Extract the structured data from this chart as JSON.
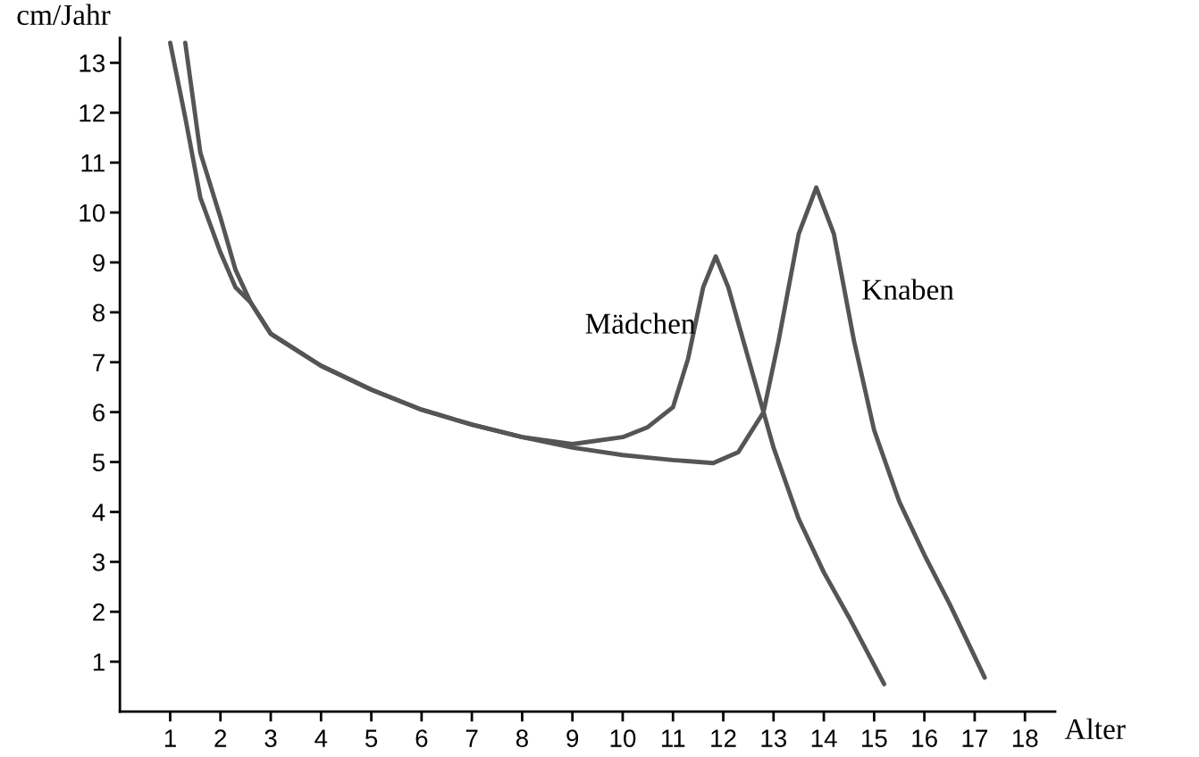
{
  "chart_data": {
    "type": "line",
    "xlabel": "Alter",
    "ylabel": "cm/Jahr",
    "xlim": [
      0,
      18.6
    ],
    "ylim": [
      0,
      13.5
    ],
    "xticks": [
      1,
      2,
      3,
      4,
      5,
      6,
      7,
      8,
      9,
      10,
      11,
      12,
      13,
      14,
      15,
      16,
      17,
      18
    ],
    "yticks": [
      1,
      2,
      3,
      4,
      5,
      6,
      7,
      8,
      9,
      10,
      11,
      12,
      13
    ],
    "grid": false,
    "legend": false,
    "marker": "none",
    "line_style": "solid",
    "series": [
      {
        "name": "Mädchen",
        "color": "#555555",
        "x": [
          1,
          1.3,
          1.6,
          2,
          2.3,
          2.6,
          3,
          4,
          5,
          6,
          7,
          8,
          9,
          10,
          10.5,
          11,
          11.3,
          11.6,
          11.85,
          12.1,
          12.5,
          13,
          13.5,
          14,
          14.5,
          15.2
        ],
        "values": [
          13.4,
          11.9,
          10.3,
          9.2,
          8.5,
          8.2,
          7.57,
          6.93,
          6.45,
          6.05,
          5.75,
          5.5,
          5.36,
          5.5,
          5.7,
          6.1,
          7.07,
          8.5,
          9.12,
          8.5,
          7.07,
          5.29,
          3.86,
          2.79,
          1.89,
          0.55
        ]
      },
      {
        "name": "Knaben",
        "color": "#555555",
        "x": [
          1.3,
          1.6,
          2,
          2.3,
          2.6,
          3,
          4,
          5,
          6,
          7,
          8,
          9,
          10,
          11,
          11.8,
          12.3,
          12.8,
          13.1,
          13.5,
          13.85,
          14.2,
          14.6,
          15,
          15.5,
          16,
          16.5,
          17.2
        ],
        "values": [
          13.4,
          11.2,
          9.9,
          8.85,
          8.2,
          7.57,
          6.93,
          6.45,
          6.05,
          5.75,
          5.5,
          5.29,
          5.14,
          5.04,
          4.98,
          5.2,
          6,
          7.43,
          9.57,
          10.5,
          9.57,
          7.43,
          5.64,
          4.21,
          3.14,
          2.16,
          0.68
        ]
      }
    ]
  }
}
